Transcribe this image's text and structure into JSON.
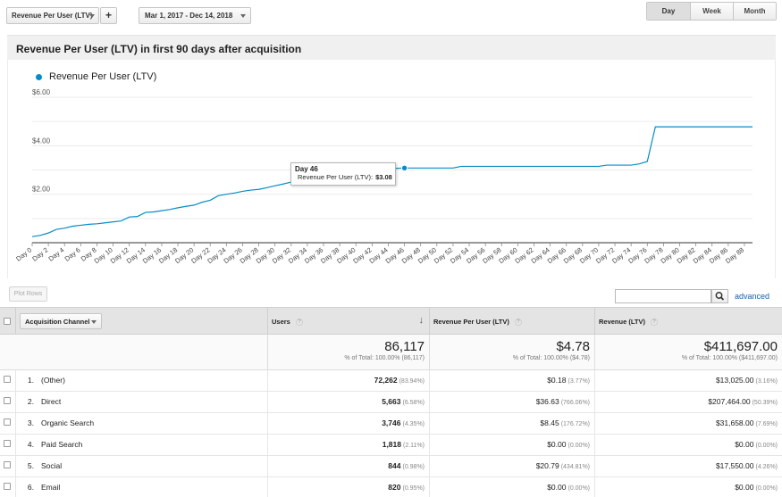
{
  "toolbar": {
    "metric_label": "Revenue Per User (LTV)",
    "add_label": "+",
    "date_range": "Mar 1, 2017 - Dec 14, 2018",
    "periods": [
      {
        "label": "Day",
        "active": true
      },
      {
        "label": "Week",
        "active": false
      },
      {
        "label": "Month",
        "active": false
      }
    ]
  },
  "chart_title": "Revenue Per User (LTV) in first 90 days after acquisition",
  "chart_data": {
    "type": "line",
    "title": "Revenue Per User (LTV) in first 90 days after acquisition",
    "series": [
      {
        "name": "Revenue Per User (LTV)",
        "color": "#058dc7",
        "x": [
          0,
          1,
          2,
          3,
          4,
          5,
          6,
          7,
          8,
          9,
          10,
          11,
          12,
          13,
          14,
          15,
          16,
          17,
          18,
          19,
          20,
          21,
          22,
          23,
          24,
          25,
          26,
          27,
          28,
          29,
          30,
          31,
          32,
          33,
          34,
          35,
          36,
          37,
          38,
          39,
          40,
          41,
          42,
          43,
          44,
          45,
          46,
          47,
          48,
          49,
          50,
          51,
          52,
          53,
          54,
          55,
          56,
          57,
          58,
          59,
          60,
          61,
          62,
          63,
          64,
          65,
          66,
          67,
          68,
          69,
          70,
          71,
          72,
          73,
          74,
          75,
          76,
          77,
          78,
          79,
          80,
          81,
          82,
          83,
          84,
          85,
          86,
          87,
          88,
          89
        ],
        "values": [
          0.25,
          0.3,
          0.4,
          0.55,
          0.6,
          0.68,
          0.72,
          0.76,
          0.78,
          0.82,
          0.86,
          0.9,
          1.06,
          1.08,
          1.25,
          1.27,
          1.32,
          1.37,
          1.44,
          1.5,
          1.55,
          1.67,
          1.75,
          1.94,
          2.0,
          2.05,
          2.12,
          2.17,
          2.2,
          2.27,
          2.35,
          2.42,
          2.5,
          2.57,
          2.63,
          2.7,
          2.75,
          2.8,
          2.85,
          2.9,
          2.95,
          3.0,
          3.02,
          3.04,
          3.06,
          3.07,
          3.08,
          3.08,
          3.08,
          3.08,
          3.08,
          3.08,
          3.08,
          3.15,
          3.15,
          3.15,
          3.15,
          3.15,
          3.15,
          3.15,
          3.15,
          3.15,
          3.15,
          3.15,
          3.15,
          3.15,
          3.15,
          3.15,
          3.15,
          3.15,
          3.15,
          3.2,
          3.2,
          3.2,
          3.2,
          3.25,
          3.35,
          4.78,
          4.78,
          4.78,
          4.78,
          4.78,
          4.78,
          4.78,
          4.78,
          4.78,
          4.78,
          4.78,
          4.78,
          4.78
        ]
      }
    ],
    "x_tick_labels": [
      "Day 0",
      "Day 2",
      "Day 4",
      "Day 6",
      "Day 8",
      "Day 10",
      "Day 12",
      "Day 14",
      "Day 16",
      "Day 18",
      "Day 20",
      "Day 22",
      "Day 24",
      "Day 26",
      "Day 28",
      "Day 30",
      "Day 32",
      "Day 34",
      "Day 36",
      "Day 38",
      "Day 40",
      "Day 42",
      "Day 44",
      "Day 46",
      "Day 48",
      "Day 50",
      "Day 52",
      "Day 54",
      "Day 56",
      "Day 58",
      "Day 60",
      "Day 62",
      "Day 64",
      "Day 66",
      "Day 68",
      "Day 70",
      "Day 72",
      "Day 74",
      "Day 76",
      "Day 78",
      "Day 80",
      "Day 82",
      "Day 84",
      "Day 86",
      "Day 88"
    ],
    "y_tick_labels": [
      "$2.00",
      "$4.00",
      "$6.00"
    ],
    "y_ticks": [
      2,
      4,
      6
    ],
    "ylim": [
      0,
      6
    ],
    "grid": true,
    "legend": "top-left",
    "tooltip": {
      "x": 46,
      "title": "Day 46",
      "label": "Revenue Per User (LTV):",
      "value": "$3.08"
    }
  },
  "table_controls": {
    "plot_rows_label": "Plot Rows",
    "search_placeholder": "",
    "advanced_label": "advanced"
  },
  "table": {
    "dimension_label": "Acquisition Channel",
    "columns": [
      {
        "label": "Users",
        "sorted": true
      },
      {
        "label": "Revenue Per User (LTV)",
        "sorted": false
      },
      {
        "label": "Revenue (LTV)",
        "sorted": false
      }
    ],
    "totals": [
      {
        "value": "86,117",
        "sub": "% of Total: 100.00% (86,117)"
      },
      {
        "value": "$4.78",
        "sub": "% of Total: 100.00% ($4.78)"
      },
      {
        "value": "$411,697.00",
        "sub": "% of Total: 100.00% ($411,697.00)"
      }
    ],
    "rows": [
      {
        "index": "1.",
        "channel": "(Other)",
        "users": "72,262",
        "users_pct": "(83.94%)",
        "rpu": "$0.18",
        "rpu_pct": "(3.77%)",
        "rev": "$13,025.00",
        "rev_pct": "(3.16%)"
      },
      {
        "index": "2.",
        "channel": "Direct",
        "users": "5,663",
        "users_pct": "(6.58%)",
        "rpu": "$36.63",
        "rpu_pct": "(766.06%)",
        "rev": "$207,464.00",
        "rev_pct": "(50.39%)"
      },
      {
        "index": "3.",
        "channel": "Organic Search",
        "users": "3,746",
        "users_pct": "(4.35%)",
        "rpu": "$8.45",
        "rpu_pct": "(176.72%)",
        "rev": "$31,658.00",
        "rev_pct": "(7.69%)"
      },
      {
        "index": "4.",
        "channel": "Paid Search",
        "users": "1,818",
        "users_pct": "(2.11%)",
        "rpu": "$0.00",
        "rpu_pct": "(0.00%)",
        "rev": "$0.00",
        "rev_pct": "(0.00%)"
      },
      {
        "index": "5.",
        "channel": "Social",
        "users": "844",
        "users_pct": "(0.98%)",
        "rpu": "$20.79",
        "rpu_pct": "(434.81%)",
        "rev": "$17,550.00",
        "rev_pct": "(4.26%)"
      },
      {
        "index": "6.",
        "channel": "Email",
        "users": "820",
        "users_pct": "(0.95%)",
        "rpu": "$0.00",
        "rpu_pct": "(0.00%)",
        "rev": "$0.00",
        "rev_pct": "(0.00%)"
      }
    ]
  }
}
